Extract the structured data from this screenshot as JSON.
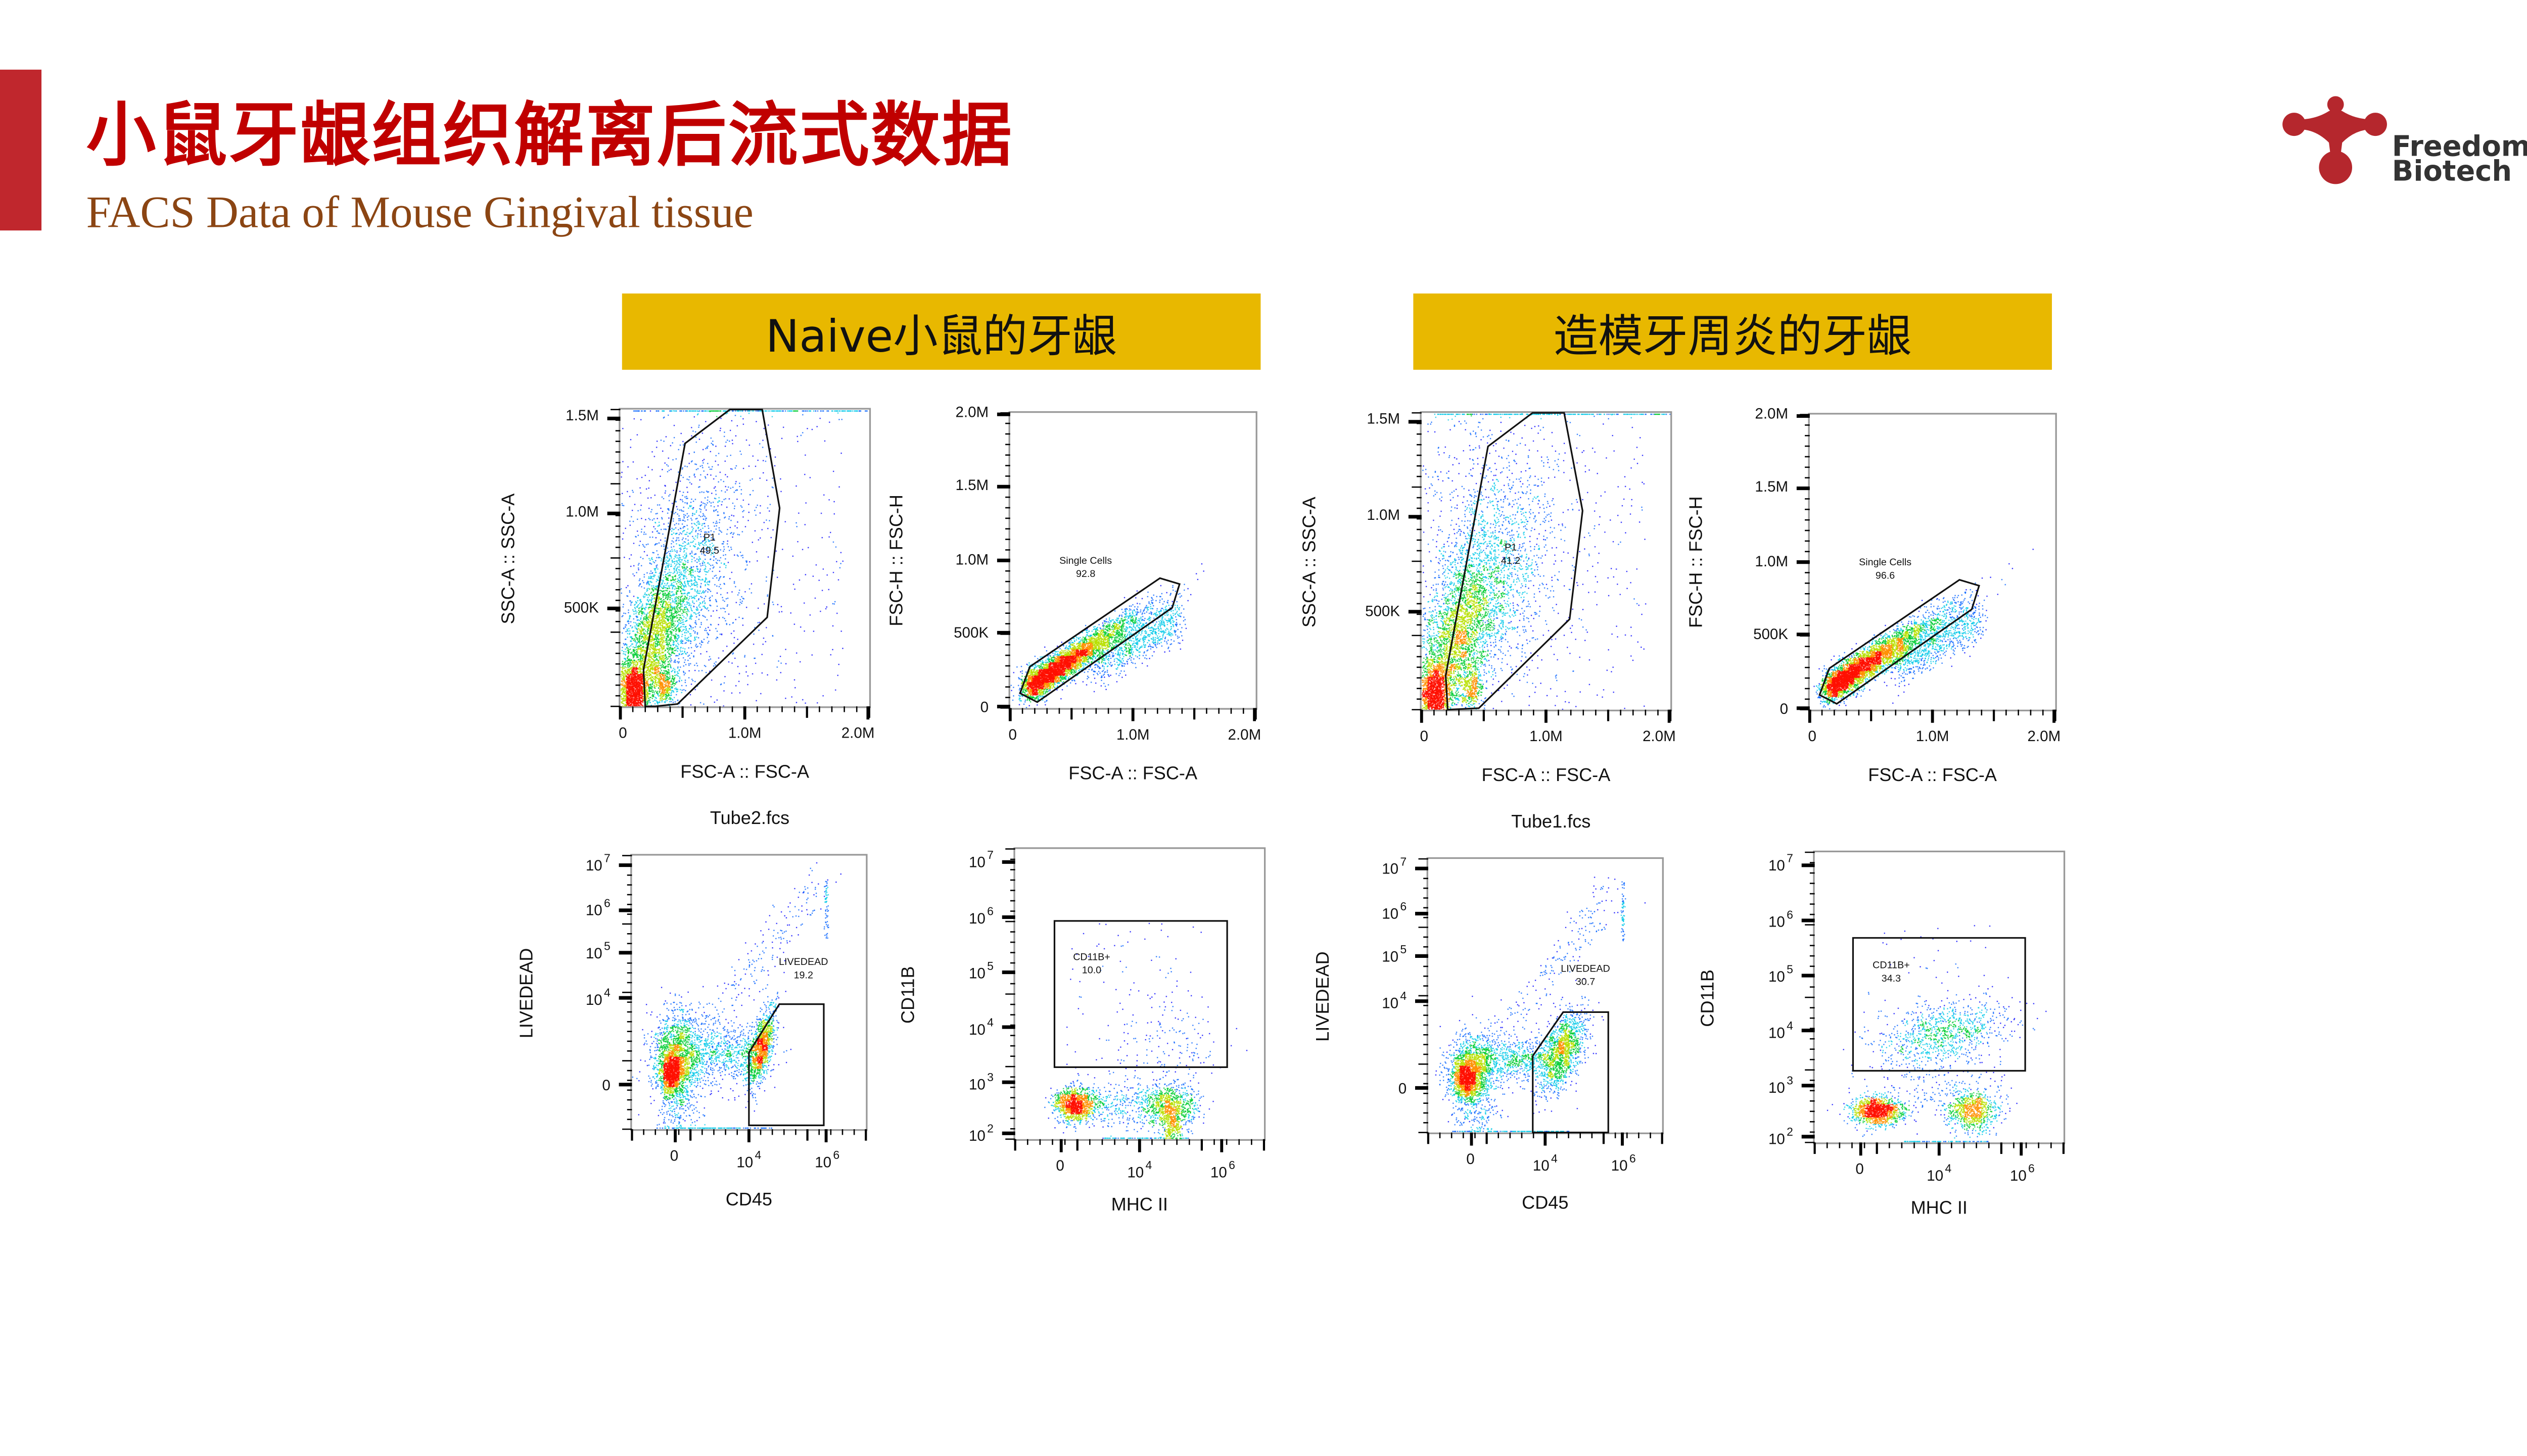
{
  "header": {
    "title": "小鼠牙龈组织解离后流式数据",
    "subtitle": "FACS Data of Mouse Gingival tissue",
    "logo_text": [
      "Freedom",
      "Biotech"
    ],
    "accent_color": "#c0272d",
    "title_color": "#c00000",
    "subtitle_color": "#8b4513",
    "panel_header_color": "#e8b800"
  },
  "groups": [
    {
      "label": "Naive小鼠的牙龈",
      "file": "Tube2.fcs"
    },
    {
      "label": "造模牙周炎的牙龈",
      "file": "Tube1.fcs"
    }
  ],
  "chart_data": [
    {
      "type": "scatter",
      "group": "Naive小鼠的牙龈",
      "xlabel": "FSC-A :: FSC-A",
      "ylabel": "SSC-A :: SSC-A",
      "xticks": [
        {
          "b": "0",
          "e": ""
        },
        {
          "b": "1.0M",
          "e": ""
        },
        {
          "b": "2.0M",
          "e": ""
        }
      ],
      "yticks": [
        {
          "b": "500K",
          "e": ""
        },
        {
          "b": "1.0M",
          "e": ""
        },
        {
          "b": "1.5M",
          "e": ""
        }
      ],
      "gate": {
        "name": "P1",
        "percent": "49.5"
      }
    },
    {
      "type": "scatter",
      "group": "Naive小鼠的牙龈",
      "xlabel": "FSC-A :: FSC-A",
      "ylabel": "FSC-H :: FSC-H",
      "xticks": [
        {
          "b": "0",
          "e": ""
        },
        {
          "b": "1.0M",
          "e": ""
        },
        {
          "b": "2.0M",
          "e": ""
        }
      ],
      "yticks": [
        {
          "b": "0",
          "e": ""
        },
        {
          "b": "500K",
          "e": ""
        },
        {
          "b": "1.0M",
          "e": ""
        },
        {
          "b": "1.5M",
          "e": ""
        },
        {
          "b": "2.0M",
          "e": ""
        }
      ],
      "gate": {
        "name": "Single Cells",
        "percent": "92.8"
      }
    },
    {
      "type": "scatter",
      "group": "Naive小鼠的牙龈",
      "xlabel": "CD45",
      "ylabel": "LIVEDEAD",
      "scale": "biexponential",
      "xticks": [
        {
          "b": "0",
          "e": ""
        },
        {
          "b": "10",
          "e": "4"
        },
        {
          "b": "10",
          "e": "6"
        }
      ],
      "yticks": [
        {
          "b": "0",
          "e": ""
        },
        {
          "b": "10",
          "e": "4"
        },
        {
          "b": "10",
          "e": "5"
        },
        {
          "b": "10",
          "e": "6"
        },
        {
          "b": "10",
          "e": "7"
        }
      ],
      "gate": {
        "name": "LIVEDEAD",
        "percent": "19.2"
      }
    },
    {
      "type": "scatter",
      "group": "Naive小鼠的牙龈",
      "xlabel": "MHC II",
      "ylabel": "CD11B",
      "scale": "biexponential",
      "xticks": [
        {
          "b": "0",
          "e": ""
        },
        {
          "b": "10",
          "e": "4"
        },
        {
          "b": "10",
          "e": "6"
        }
      ],
      "yticks": [
        {
          "b": "10",
          "e": "2"
        },
        {
          "b": "10",
          "e": "3"
        },
        {
          "b": "10",
          "e": "4"
        },
        {
          "b": "10",
          "e": "5"
        },
        {
          "b": "10",
          "e": "6"
        },
        {
          "b": "10",
          "e": "7"
        }
      ],
      "gate": {
        "name": "CD11B+",
        "percent": "10.0"
      }
    },
    {
      "type": "scatter",
      "group": "造模牙周炎的牙龈",
      "xlabel": "FSC-A :: FSC-A",
      "ylabel": "SSC-A :: SSC-A",
      "xticks": [
        {
          "b": "0",
          "e": ""
        },
        {
          "b": "1.0M",
          "e": ""
        },
        {
          "b": "2.0M",
          "e": ""
        }
      ],
      "yticks": [
        {
          "b": "500K",
          "e": ""
        },
        {
          "b": "1.0M",
          "e": ""
        },
        {
          "b": "1.5M",
          "e": ""
        }
      ],
      "gate": {
        "name": "P1",
        "percent": "41.2"
      }
    },
    {
      "type": "scatter",
      "group": "造模牙周炎的牙龈",
      "xlabel": "FSC-A :: FSC-A",
      "ylabel": "FSC-H :: FSC-H",
      "xticks": [
        {
          "b": "0",
          "e": ""
        },
        {
          "b": "1.0M",
          "e": ""
        },
        {
          "b": "2.0M",
          "e": ""
        }
      ],
      "yticks": [
        {
          "b": "0",
          "e": ""
        },
        {
          "b": "500K",
          "e": ""
        },
        {
          "b": "1.0M",
          "e": ""
        },
        {
          "b": "1.5M",
          "e": ""
        },
        {
          "b": "2.0M",
          "e": ""
        }
      ],
      "gate": {
        "name": "Single Cells",
        "percent": "96.6"
      }
    },
    {
      "type": "scatter",
      "group": "造模牙周炎的牙龈",
      "xlabel": "CD45",
      "ylabel": "LIVEDEAD",
      "scale": "biexponential",
      "xticks": [
        {
          "b": "0",
          "e": ""
        },
        {
          "b": "10",
          "e": "4"
        },
        {
          "b": "10",
          "e": "6"
        }
      ],
      "yticks": [
        {
          "b": "0",
          "e": ""
        },
        {
          "b": "10",
          "e": "4"
        },
        {
          "b": "10",
          "e": "5"
        },
        {
          "b": "10",
          "e": "6"
        },
        {
          "b": "10",
          "e": "7"
        }
      ],
      "gate": {
        "name": "LIVEDEAD",
        "percent": "30.7"
      }
    },
    {
      "type": "scatter",
      "group": "造模牙周炎的牙龈",
      "xlabel": "MHC II",
      "ylabel": "CD11B",
      "scale": "biexponential",
      "xticks": [
        {
          "b": "0",
          "e": ""
        },
        {
          "b": "10",
          "e": "4"
        },
        {
          "b": "10",
          "e": "6"
        }
      ],
      "yticks": [
        {
          "b": "10",
          "e": "2"
        },
        {
          "b": "10",
          "e": "3"
        },
        {
          "b": "10",
          "e": "4"
        },
        {
          "b": "10",
          "e": "5"
        },
        {
          "b": "10",
          "e": "6"
        },
        {
          "b": "10",
          "e": "7"
        }
      ],
      "gate": {
        "name": "CD11B+",
        "percent": "34.3"
      }
    }
  ]
}
